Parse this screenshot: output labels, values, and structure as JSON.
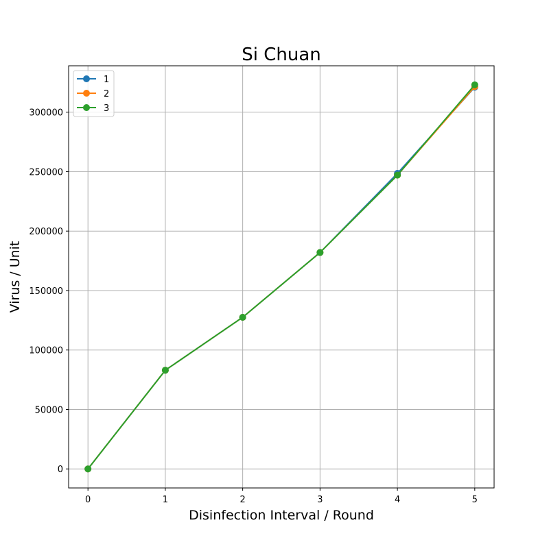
{
  "chart_data": {
    "type": "line",
    "title": "Si Chuan",
    "xlabel": "Disinfection Interval / Round",
    "ylabel": "Virus / Unit",
    "x": [
      0,
      1,
      2,
      3,
      4,
      5
    ],
    "xticks": [
      0,
      1,
      2,
      3,
      4,
      5
    ],
    "yticks": [
      0,
      50000,
      100000,
      150000,
      200000,
      250000,
      300000
    ],
    "xlim": [
      -0.25,
      5.25
    ],
    "ylim": [
      -16000,
      339000
    ],
    "grid": true,
    "legend_position": "top-left",
    "series": [
      {
        "name": "1",
        "color": "#1f77b4",
        "values": [
          0,
          83000,
          127500,
          182000,
          248500,
          321000
        ]
      },
      {
        "name": "2",
        "color": "#ff7f0e",
        "values": [
          0,
          83000,
          127500,
          182000,
          247000,
          321500
        ]
      },
      {
        "name": "3",
        "color": "#2ca02c",
        "values": [
          0,
          83000,
          127500,
          182000,
          247000,
          323000
        ]
      }
    ]
  }
}
